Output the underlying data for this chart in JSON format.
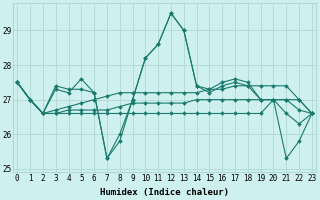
{
  "xlabel": "Humidex (Indice chaleur)",
  "xlim": [
    -0.3,
    23.3
  ],
  "ylim": [
    24.9,
    29.8
  ],
  "yticks": [
    25,
    26,
    27,
    28,
    29
  ],
  "xticks": [
    0,
    1,
    2,
    3,
    4,
    5,
    6,
    7,
    8,
    9,
    10,
    11,
    12,
    13,
    14,
    15,
    16,
    17,
    18,
    19,
    20,
    21,
    22,
    23
  ],
  "bg_color": "#cef0ee",
  "grid_color": "#b0d8d4",
  "line_color": "#1a7a6e",
  "series": [
    [
      27.5,
      27.0,
      26.6,
      27.3,
      27.2,
      27.6,
      27.2,
      25.3,
      25.8,
      27.0,
      28.2,
      28.6,
      29.5,
      29.0,
      27.4,
      27.2,
      27.4,
      27.5,
      27.4,
      27.0,
      27.0,
      27.0,
      27.0,
      26.6
    ],
    [
      27.5,
      27.0,
      26.6,
      26.7,
      26.8,
      26.9,
      27.0,
      27.1,
      27.2,
      27.2,
      27.2,
      27.2,
      27.2,
      27.2,
      27.2,
      27.3,
      27.3,
      27.4,
      27.4,
      27.4,
      27.4,
      27.4,
      27.0,
      26.6
    ],
    [
      27.5,
      27.0,
      26.6,
      26.6,
      26.7,
      26.7,
      26.7,
      26.7,
      26.8,
      26.9,
      26.9,
      26.9,
      26.9,
      26.9,
      27.0,
      27.0,
      27.0,
      27.0,
      27.0,
      27.0,
      27.0,
      27.0,
      26.7,
      26.6
    ],
    [
      27.5,
      27.0,
      26.6,
      26.6,
      26.6,
      26.6,
      26.6,
      26.6,
      26.6,
      26.6,
      26.6,
      26.6,
      26.6,
      26.6,
      26.6,
      26.6,
      26.6,
      26.6,
      26.6,
      26.6,
      27.0,
      26.6,
      26.3,
      26.6
    ],
    [
      27.5,
      27.0,
      26.6,
      27.4,
      27.3,
      27.3,
      27.2,
      25.3,
      26.0,
      27.0,
      28.2,
      28.6,
      29.5,
      29.0,
      27.4,
      27.3,
      27.5,
      27.6,
      27.5,
      27.0,
      27.0,
      25.3,
      25.8,
      26.6
    ]
  ],
  "marker": "D",
  "marker_size": 2.0,
  "line_width": 0.8,
  "tick_fontsize": 5.5,
  "xlabel_fontsize": 6.5
}
